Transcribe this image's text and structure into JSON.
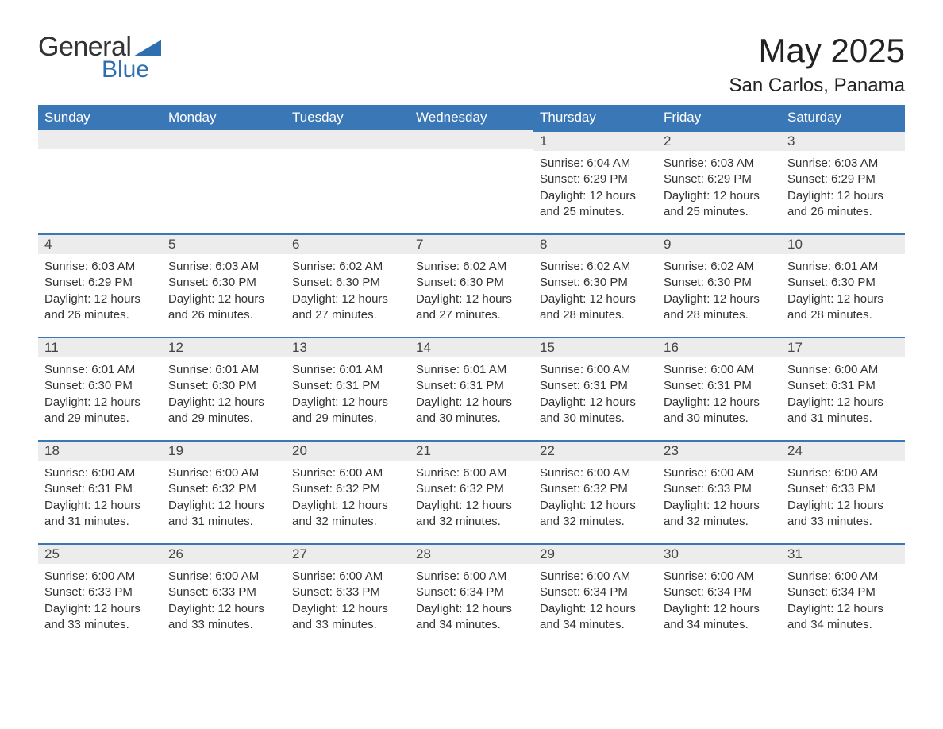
{
  "logo": {
    "text_general": "General",
    "text_blue": "Blue"
  },
  "title": "May 2025",
  "location": "San Carlos, Panama",
  "colors": {
    "header_bg": "#3a77b6",
    "header_text": "#ffffff",
    "daynum_bg": "#ececec",
    "daynum_border": "#3a77b6",
    "body_bg": "#ffffff",
    "text": "#333333",
    "logo_blue": "#2f6fb0"
  },
  "day_headers": [
    "Sunday",
    "Monday",
    "Tuesday",
    "Wednesday",
    "Thursday",
    "Friday",
    "Saturday"
  ],
  "weeks": [
    [
      {
        "day": "",
        "lines": []
      },
      {
        "day": "",
        "lines": []
      },
      {
        "day": "",
        "lines": []
      },
      {
        "day": "",
        "lines": []
      },
      {
        "day": "1",
        "lines": [
          "Sunrise: 6:04 AM",
          "Sunset: 6:29 PM",
          "Daylight: 12 hours",
          "and 25 minutes."
        ]
      },
      {
        "day": "2",
        "lines": [
          "Sunrise: 6:03 AM",
          "Sunset: 6:29 PM",
          "Daylight: 12 hours",
          "and 25 minutes."
        ]
      },
      {
        "day": "3",
        "lines": [
          "Sunrise: 6:03 AM",
          "Sunset: 6:29 PM",
          "Daylight: 12 hours",
          "and 26 minutes."
        ]
      }
    ],
    [
      {
        "day": "4",
        "lines": [
          "Sunrise: 6:03 AM",
          "Sunset: 6:29 PM",
          "Daylight: 12 hours",
          "and 26 minutes."
        ]
      },
      {
        "day": "5",
        "lines": [
          "Sunrise: 6:03 AM",
          "Sunset: 6:30 PM",
          "Daylight: 12 hours",
          "and 26 minutes."
        ]
      },
      {
        "day": "6",
        "lines": [
          "Sunrise: 6:02 AM",
          "Sunset: 6:30 PM",
          "Daylight: 12 hours",
          "and 27 minutes."
        ]
      },
      {
        "day": "7",
        "lines": [
          "Sunrise: 6:02 AM",
          "Sunset: 6:30 PM",
          "Daylight: 12 hours",
          "and 27 minutes."
        ]
      },
      {
        "day": "8",
        "lines": [
          "Sunrise: 6:02 AM",
          "Sunset: 6:30 PM",
          "Daylight: 12 hours",
          "and 28 minutes."
        ]
      },
      {
        "day": "9",
        "lines": [
          "Sunrise: 6:02 AM",
          "Sunset: 6:30 PM",
          "Daylight: 12 hours",
          "and 28 minutes."
        ]
      },
      {
        "day": "10",
        "lines": [
          "Sunrise: 6:01 AM",
          "Sunset: 6:30 PM",
          "Daylight: 12 hours",
          "and 28 minutes."
        ]
      }
    ],
    [
      {
        "day": "11",
        "lines": [
          "Sunrise: 6:01 AM",
          "Sunset: 6:30 PM",
          "Daylight: 12 hours",
          "and 29 minutes."
        ]
      },
      {
        "day": "12",
        "lines": [
          "Sunrise: 6:01 AM",
          "Sunset: 6:30 PM",
          "Daylight: 12 hours",
          "and 29 minutes."
        ]
      },
      {
        "day": "13",
        "lines": [
          "Sunrise: 6:01 AM",
          "Sunset: 6:31 PM",
          "Daylight: 12 hours",
          "and 29 minutes."
        ]
      },
      {
        "day": "14",
        "lines": [
          "Sunrise: 6:01 AM",
          "Sunset: 6:31 PM",
          "Daylight: 12 hours",
          "and 30 minutes."
        ]
      },
      {
        "day": "15",
        "lines": [
          "Sunrise: 6:00 AM",
          "Sunset: 6:31 PM",
          "Daylight: 12 hours",
          "and 30 minutes."
        ]
      },
      {
        "day": "16",
        "lines": [
          "Sunrise: 6:00 AM",
          "Sunset: 6:31 PM",
          "Daylight: 12 hours",
          "and 30 minutes."
        ]
      },
      {
        "day": "17",
        "lines": [
          "Sunrise: 6:00 AM",
          "Sunset: 6:31 PM",
          "Daylight: 12 hours",
          "and 31 minutes."
        ]
      }
    ],
    [
      {
        "day": "18",
        "lines": [
          "Sunrise: 6:00 AM",
          "Sunset: 6:31 PM",
          "Daylight: 12 hours",
          "and 31 minutes."
        ]
      },
      {
        "day": "19",
        "lines": [
          "Sunrise: 6:00 AM",
          "Sunset: 6:32 PM",
          "Daylight: 12 hours",
          "and 31 minutes."
        ]
      },
      {
        "day": "20",
        "lines": [
          "Sunrise: 6:00 AM",
          "Sunset: 6:32 PM",
          "Daylight: 12 hours",
          "and 32 minutes."
        ]
      },
      {
        "day": "21",
        "lines": [
          "Sunrise: 6:00 AM",
          "Sunset: 6:32 PM",
          "Daylight: 12 hours",
          "and 32 minutes."
        ]
      },
      {
        "day": "22",
        "lines": [
          "Sunrise: 6:00 AM",
          "Sunset: 6:32 PM",
          "Daylight: 12 hours",
          "and 32 minutes."
        ]
      },
      {
        "day": "23",
        "lines": [
          "Sunrise: 6:00 AM",
          "Sunset: 6:33 PM",
          "Daylight: 12 hours",
          "and 32 minutes."
        ]
      },
      {
        "day": "24",
        "lines": [
          "Sunrise: 6:00 AM",
          "Sunset: 6:33 PM",
          "Daylight: 12 hours",
          "and 33 minutes."
        ]
      }
    ],
    [
      {
        "day": "25",
        "lines": [
          "Sunrise: 6:00 AM",
          "Sunset: 6:33 PM",
          "Daylight: 12 hours",
          "and 33 minutes."
        ]
      },
      {
        "day": "26",
        "lines": [
          "Sunrise: 6:00 AM",
          "Sunset: 6:33 PM",
          "Daylight: 12 hours",
          "and 33 minutes."
        ]
      },
      {
        "day": "27",
        "lines": [
          "Sunrise: 6:00 AM",
          "Sunset: 6:33 PM",
          "Daylight: 12 hours",
          "and 33 minutes."
        ]
      },
      {
        "day": "28",
        "lines": [
          "Sunrise: 6:00 AM",
          "Sunset: 6:34 PM",
          "Daylight: 12 hours",
          "and 34 minutes."
        ]
      },
      {
        "day": "29",
        "lines": [
          "Sunrise: 6:00 AM",
          "Sunset: 6:34 PM",
          "Daylight: 12 hours",
          "and 34 minutes."
        ]
      },
      {
        "day": "30",
        "lines": [
          "Sunrise: 6:00 AM",
          "Sunset: 6:34 PM",
          "Daylight: 12 hours",
          "and 34 minutes."
        ]
      },
      {
        "day": "31",
        "lines": [
          "Sunrise: 6:00 AM",
          "Sunset: 6:34 PM",
          "Daylight: 12 hours",
          "and 34 minutes."
        ]
      }
    ]
  ]
}
